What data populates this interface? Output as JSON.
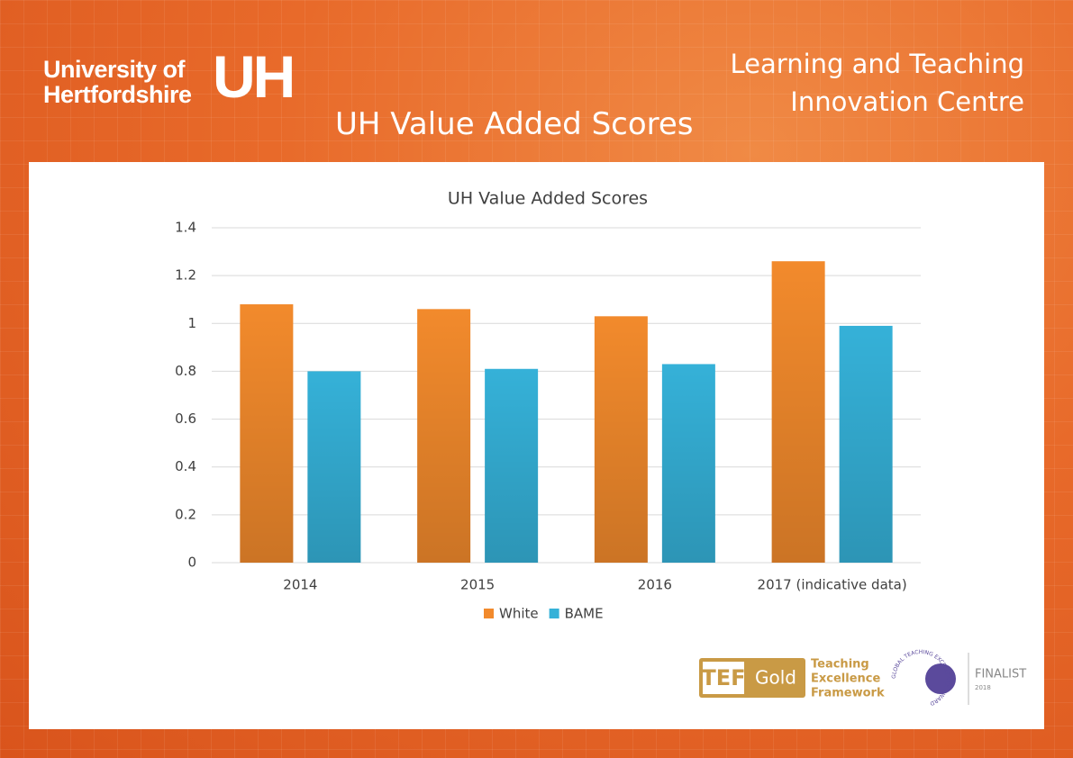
{
  "header": {
    "logo_line1": "University of",
    "logo_line2": "Hertfordshire",
    "logo_mark": "UH",
    "slide_title": "UH Value Added Scores",
    "centre_line1": "Learning and Teaching",
    "centre_line2": "Innovation Centre"
  },
  "chart_data": {
    "type": "bar",
    "title": "UH Value Added Scores",
    "categories": [
      "2014",
      "2015",
      "2016",
      "2017 (indicative data)"
    ],
    "series": [
      {
        "name": "White",
        "color": "#f28a2c",
        "values": [
          1.08,
          1.06,
          1.03,
          1.26
        ]
      },
      {
        "name": "BAME",
        "color": "#35b1d8",
        "values": [
          0.8,
          0.81,
          0.83,
          0.99
        ]
      }
    ],
    "ylim": [
      0,
      1.4
    ],
    "yticks": [
      0,
      0.2,
      0.4,
      0.6,
      0.8,
      1,
      1.2,
      1.4
    ],
    "grid": true,
    "legend": "bottom"
  },
  "footer": {
    "tef": "TEF",
    "gold": "Gold",
    "tef_line1": "Teaching",
    "tef_line2": "Excellence",
    "tef_line3": "Framework",
    "award_ring": "GLOBAL TEACHING EXCELLENCE AWARD",
    "finalist": "FINALIST",
    "year": "2018"
  }
}
